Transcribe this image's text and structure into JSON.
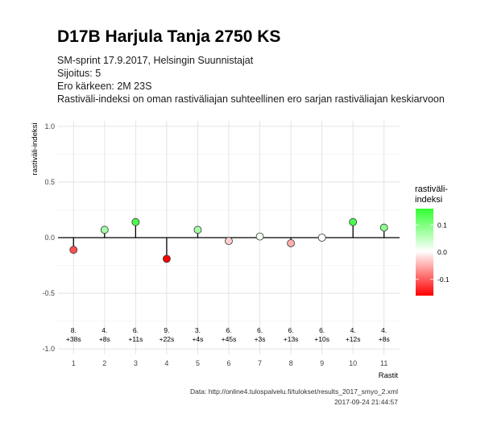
{
  "chart_data": {
    "type": "lollipop",
    "title": "D17B Harjula Tanja 2750 KS",
    "subtitle_lines": [
      "SM-sprint 17.9.2017, Helsingin Suunnistajat",
      "Sijoitus: 5",
      "Ero kärkeen: 2M 23S",
      "Rastiväli-indeksi on oman rastiväliajan suhteellinen ero sarjan rastiväliajan keskiarvoon"
    ],
    "xlabel": "Rastit",
    "ylabel": "rastiväli-indeksi",
    "ylim": [
      -1.0,
      1.0
    ],
    "y_ticks": [
      "1.0",
      "0.5",
      "0.0",
      "-0.5",
      "-1.0"
    ],
    "x_ticks": [
      "1",
      "2",
      "3",
      "4",
      "5",
      "6",
      "7",
      "8",
      "9",
      "10",
      "11"
    ],
    "grid": true,
    "x": [
      1,
      2,
      3,
      4,
      5,
      6,
      7,
      8,
      9,
      10,
      11
    ],
    "values": [
      -0.11,
      0.07,
      0.14,
      -0.19,
      0.07,
      -0.03,
      0.01,
      -0.05,
      0.0,
      0.14,
      0.09
    ],
    "annotations": [
      [
        "8.",
        "+38s"
      ],
      [
        "4.",
        "+8s"
      ],
      [
        "6.",
        "+11s"
      ],
      [
        "9.",
        "+22s"
      ],
      [
        "3.",
        "+4s"
      ],
      [
        "6.",
        "+45s"
      ],
      [
        "6.",
        "+3s"
      ],
      [
        "6.",
        "+13s"
      ],
      [
        "6.",
        "+10s"
      ],
      [
        "4.",
        "+12s"
      ],
      [
        "4.",
        "+8s"
      ]
    ],
    "legend": {
      "title_lines": [
        "rastiväli-",
        "indeksi"
      ],
      "labels": [
        "0.1",
        "0.0",
        "-0.1"
      ],
      "position": "right",
      "colors": {
        "high": "#33ff33",
        "mid": "#ffffff",
        "low": "#ff0000"
      }
    },
    "caption_lines": [
      "Data: http://online4.tulospalvelu.fi/tulokset/results_2017_smyo_2.xml",
      "2017-09-24 21:44:57"
    ]
  }
}
